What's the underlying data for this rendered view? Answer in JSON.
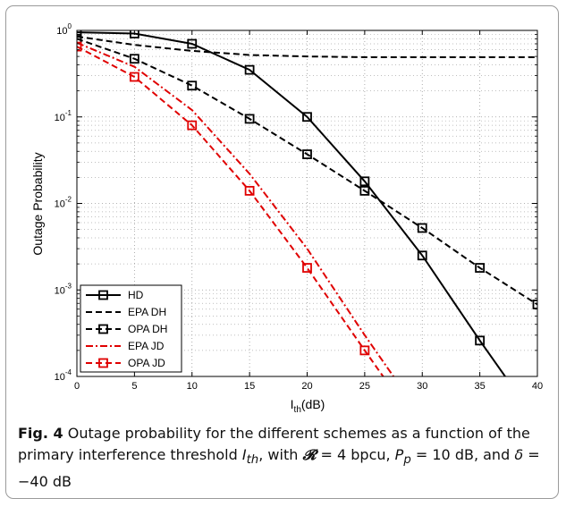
{
  "chart_data": {
    "type": "line",
    "xlabel_main": "I",
    "xlabel_sub": "th",
    "xlabel_unit": "(dB)",
    "ylabel": "Outage Probability",
    "xlim": [
      0,
      40
    ],
    "ylim": [
      0.0001,
      1
    ],
    "yscale": "log",
    "grid": true,
    "legend_position": "bottom-left",
    "x_ticks": [
      "0",
      "5",
      "10",
      "15",
      "20",
      "25",
      "30",
      "35",
      "40"
    ],
    "y_ticks": [
      {
        "base": "10",
        "exp": "0"
      },
      {
        "base": "10",
        "exp": "-1"
      },
      {
        "base": "10",
        "exp": "-2"
      },
      {
        "base": "10",
        "exp": "-3"
      },
      {
        "base": "10",
        "exp": "-4"
      }
    ],
    "series": [
      {
        "name": "HD",
        "color": "#000000",
        "style": "solid",
        "marker": "square",
        "x": [
          0,
          5,
          10,
          15,
          20,
          25,
          30,
          35,
          37.2
        ],
        "y": [
          0.95,
          0.92,
          0.7,
          0.35,
          0.1,
          0.018,
          0.0025,
          0.00026,
          0.0001
        ]
      },
      {
        "name": "EPA DH",
        "color": "#000000",
        "style": "dashed",
        "marker": "none",
        "x": [
          0,
          5,
          10,
          15,
          20,
          25,
          30,
          35,
          40
        ],
        "y": [
          0.85,
          0.68,
          0.58,
          0.52,
          0.5,
          0.49,
          0.49,
          0.49,
          0.49
        ]
      },
      {
        "name": "OPA DH",
        "color": "#000000",
        "style": "dashed",
        "marker": "square",
        "x": [
          0,
          5,
          10,
          15,
          20,
          25,
          30,
          35,
          40
        ],
        "y": [
          0.8,
          0.47,
          0.23,
          0.095,
          0.037,
          0.014,
          0.0052,
          0.0018,
          0.00068
        ]
      },
      {
        "name": "EPA JD",
        "color": "#e00000",
        "style": "dashdot",
        "marker": "none",
        "x": [
          0,
          5,
          10,
          15,
          20,
          25,
          27.5
        ],
        "y": [
          0.72,
          0.38,
          0.12,
          0.022,
          0.003,
          0.0003,
          0.0001
        ]
      },
      {
        "name": "OPA JD",
        "color": "#e00000",
        "style": "dashed",
        "marker": "square",
        "x": [
          0,
          5,
          10,
          15,
          20,
          25,
          26.6
        ],
        "y": [
          0.65,
          0.29,
          0.08,
          0.014,
          0.0018,
          0.0002,
          0.0001
        ]
      }
    ]
  },
  "caption": {
    "fig_label": "Fig. 4",
    "text_a": " Outage probability for the different schemes as a function of the primary interference threshold ",
    "ith_main": "I",
    "ith_sub": "th",
    "text_b": ", with ",
    "r_symbol": "𝓡",
    "text_c": " = 4 bpcu, ",
    "pp_main": "P",
    "pp_sub": "p",
    "text_d": " = 10 dB, and ",
    "delta": "δ",
    "text_e": " = −40 dB"
  }
}
